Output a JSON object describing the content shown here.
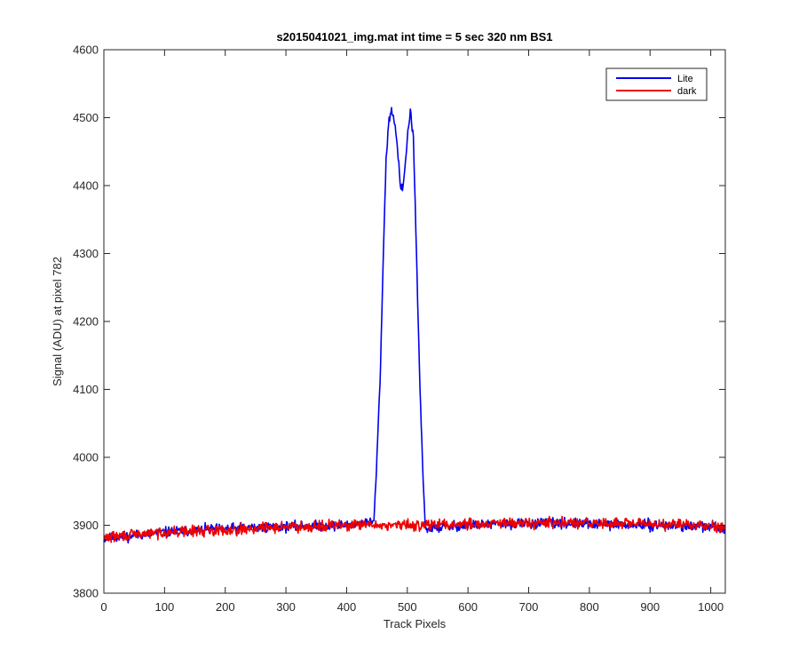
{
  "chart_data": {
    "type": "line",
    "title": "s2015041021_img.mat int time = 5 sec  320 nm BS1",
    "xlabel": "Track Pixels",
    "ylabel": "Signal (ADU) at pixel 782",
    "xlim": [
      0,
      1024
    ],
    "ylim": [
      3800,
      4600
    ],
    "xticks": [
      0,
      100,
      200,
      300,
      400,
      500,
      600,
      700,
      800,
      900,
      1000
    ],
    "yticks": [
      3800,
      3900,
      4000,
      4100,
      4200,
      4300,
      4400,
      4500,
      4600
    ],
    "grid": false,
    "legend_position": "top-right",
    "series": [
      {
        "name": "Lite",
        "color": "#0000ee",
        "x": [
          0,
          50,
          100,
          200,
          300,
          400,
          445,
          450,
          455,
          460,
          465,
          470,
          475,
          480,
          485,
          490,
          495,
          500,
          505,
          510,
          515,
          520,
          525,
          530,
          600,
          700,
          800,
          900,
          1000,
          1024
        ],
        "y": [
          3880,
          3885,
          3890,
          3895,
          3898,
          3900,
          3905,
          4000,
          4110,
          4280,
          4440,
          4500,
          4510,
          4490,
          4440,
          4390,
          4410,
          4470,
          4510,
          4470,
          4300,
          4130,
          3990,
          3895,
          3900,
          3903,
          3902,
          3900,
          3898,
          3895
        ],
        "noise_amplitude": 11,
        "noise_seed": 11
      },
      {
        "name": "dark",
        "color": "#ee0000",
        "x": [
          0,
          50,
          100,
          200,
          300,
          400,
          500,
          600,
          700,
          800,
          900,
          1000,
          1024
        ],
        "y": [
          3882,
          3886,
          3890,
          3893,
          3898,
          3900,
          3900,
          3902,
          3903,
          3903,
          3902,
          3900,
          3897
        ],
        "noise_amplitude": 12,
        "noise_seed": 29
      }
    ]
  }
}
